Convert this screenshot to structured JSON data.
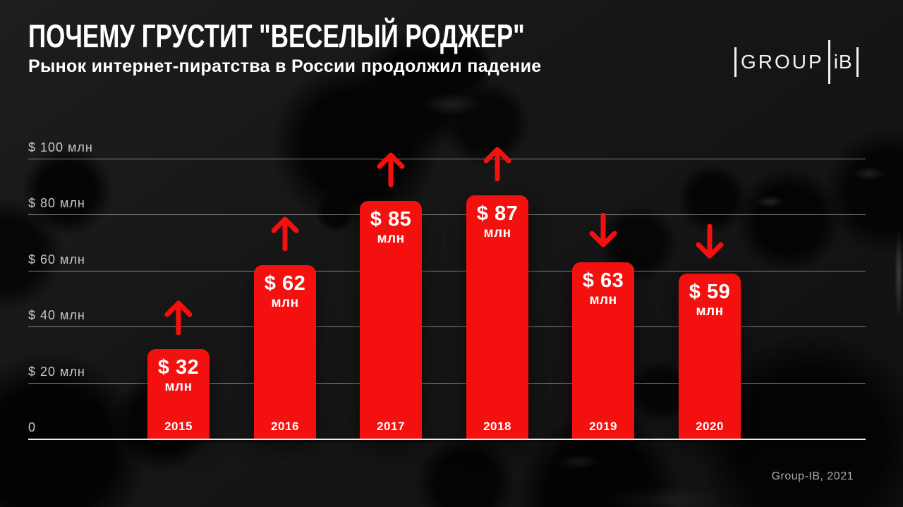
{
  "header": {
    "title": "ПОЧЕМУ ГРУСТИТ \"ВЕСЕЛЫЙ РОДЖЕР\"",
    "subtitle": "Рынок интернет-пиратства в России продолжил падение",
    "logo": {
      "group": "GROUP",
      "ib": "iB"
    }
  },
  "footer": {
    "credit": "Group-IB, 2021"
  },
  "chart_data": {
    "type": "bar",
    "title": "Рынок интернет-пиратства в России продолжил падение",
    "categories": [
      "2015",
      "2016",
      "2017",
      "2018",
      "2019",
      "2020"
    ],
    "values": [
      32,
      62,
      85,
      87,
      63,
      59
    ],
    "value_labels": [
      "$ 32",
      "$ 62",
      "$ 85",
      "$ 87",
      "$ 63",
      "$ 59"
    ],
    "unit": "млн",
    "trend": [
      "up",
      "up",
      "up",
      "up",
      "down",
      "down"
    ],
    "y_ticks": [
      {
        "value": 100,
        "label": "$ 100 млн"
      },
      {
        "value": 80,
        "label": "$ 80 млн"
      },
      {
        "value": 60,
        "label": "$ 60 млн"
      },
      {
        "value": 40,
        "label": "$ 40 млн"
      },
      {
        "value": 20,
        "label": "$ 20 млн"
      },
      {
        "value": 0,
        "label": "0"
      }
    ],
    "ylim": [
      0,
      100
    ],
    "grid": true,
    "legend": false,
    "colors": {
      "bar": "#f51010",
      "arrow": "#f51010",
      "bar_label": "#ffffff",
      "tick_label": "#c6c6c6",
      "gridline": "rgba(255,255,255,0.48)",
      "axis": "#ededed",
      "background": "#151515"
    }
  }
}
